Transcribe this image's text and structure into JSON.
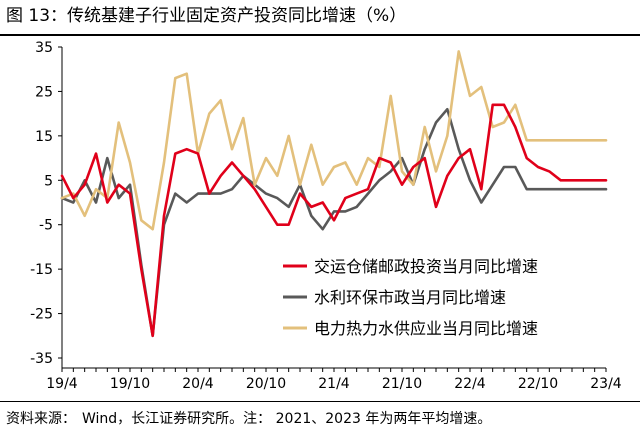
{
  "figure": {
    "title": "图 13：传统基建子行业固定资产投资同比增速（%）",
    "source_label": "资料来源：",
    "source_text": "Wind，长江证券研究所。注： 2021、2023 年为两年平均增速。"
  },
  "colors": {
    "series": [
      "#e0001a",
      "#595959",
      "#e3c07c"
    ],
    "axis": "#000000"
  },
  "chart_data": {
    "type": "line",
    "title": "",
    "xlabel": "",
    "ylabel": "",
    "ylim": [
      -35,
      35
    ],
    "yticks": [
      35,
      25,
      15,
      5,
      -5,
      -15,
      -25,
      -35
    ],
    "x": [
      "2019-04",
      "2019-05",
      "2019-06",
      "2019-07",
      "2019-08",
      "2019-09",
      "2019-10",
      "2019-11",
      "2019-12",
      "2020-01",
      "2020-02",
      "2020-03",
      "2020-04",
      "2020-05",
      "2020-06",
      "2020-07",
      "2020-08",
      "2020-09",
      "2020-10",
      "2020-11",
      "2020-12",
      "2021-01",
      "2021-02",
      "2021-03",
      "2021-04",
      "2021-05",
      "2021-06",
      "2021-07",
      "2021-08",
      "2021-09",
      "2021-10",
      "2021-11",
      "2021-12",
      "2022-01",
      "2022-02",
      "2022-03",
      "2022-04",
      "2022-05",
      "2022-06",
      "2022-07",
      "2022-08",
      "2022-09",
      "2022-10",
      "2022-11",
      "2022-12",
      "2023-01",
      "2023-02",
      "2023-03",
      "2023-04"
    ],
    "xticks": [
      "19/4",
      "19/10",
      "20/4",
      "20/10",
      "21/4",
      "21/10",
      "22/4",
      "22/10",
      "23/4"
    ],
    "grid": false,
    "legend_position": "bottom-right",
    "series": [
      {
        "name": "交运仓储邮政投资当月同比增速",
        "values": [
          6,
          1,
          4,
          11,
          0,
          4,
          2,
          -15,
          -30,
          -3,
          11,
          12,
          11,
          2,
          6,
          9,
          6,
          3,
          -1,
          -5,
          -5,
          2,
          -1,
          0,
          -4,
          1,
          2,
          3,
          10,
          9,
          4,
          8,
          10,
          -1,
          6,
          10,
          12,
          3,
          22,
          22,
          17,
          10,
          8,
          7,
          5,
          5,
          5,
          5,
          5
        ]
      },
      {
        "name": "水利环保市政当月同比增速",
        "values": [
          1,
          0,
          5,
          0,
          10,
          1,
          4,
          -14,
          -30,
          -5,
          2,
          0,
          2,
          2,
          2,
          3,
          6,
          4,
          2,
          1,
          -1,
          4,
          -3,
          -6,
          -2,
          -2,
          -1,
          2,
          5,
          7,
          10,
          4,
          12,
          18,
          21,
          12,
          5,
          0,
          4,
          8,
          8,
          3,
          3,
          3,
          3,
          3,
          3,
          3,
          3
        ]
      },
      {
        "name": "电力热力水供应业当月同比增速",
        "values": [
          1,
          2,
          -3,
          3,
          1,
          18,
          9,
          -4,
          -6,
          9,
          28,
          29,
          11,
          20,
          23,
          12,
          19,
          4,
          10,
          6,
          15,
          4,
          13,
          4,
          8,
          9,
          4,
          10,
          8,
          24,
          7,
          4,
          17,
          7,
          15,
          34,
          24,
          26,
          17,
          18,
          22,
          14,
          14,
          14,
          14,
          14,
          14,
          14,
          14
        ]
      }
    ]
  }
}
